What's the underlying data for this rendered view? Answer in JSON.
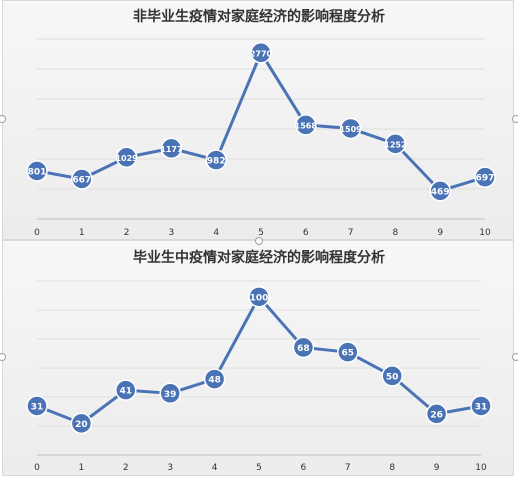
{
  "chart_data": [
    {
      "type": "line",
      "title": "非毕业生疫情对家庭经济的影响程度分析",
      "categories": [
        "0",
        "1",
        "2",
        "3",
        "4",
        "5",
        "6",
        "7",
        "8",
        "9",
        "10"
      ],
      "values": [
        801,
        667,
        1029,
        1177,
        982,
        2770,
        1568,
        1509,
        1252,
        469,
        697
      ],
      "ylim": [
        0,
        3000
      ],
      "grid": true,
      "color": "#4a73b5"
    },
    {
      "type": "line",
      "title": "毕业生中疫情对家庭经济的影响程度分析",
      "categories": [
        "0",
        "1",
        "2",
        "3",
        "4",
        "5",
        "6",
        "7",
        "8",
        "9",
        "10"
      ],
      "values": [
        31,
        20,
        41,
        39,
        48,
        100,
        68,
        65,
        50,
        26,
        31
      ],
      "ylim": [
        0,
        110
      ],
      "grid": true,
      "color": "#4a73b5"
    }
  ]
}
